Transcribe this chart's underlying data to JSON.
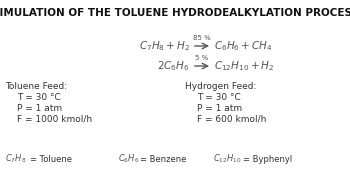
{
  "title": "SIMULATION OF THE TOLUENE HYDRODEALKYLATION PROCESS",
  "title_fontsize": 7.5,
  "title_fontweight": "bold",
  "bg_color": "#ffffff",
  "text_color": "#333333",
  "reaction_color": "#555555",
  "reaction1_pct": "85 %",
  "reaction2_pct": "5 %",
  "toluene_feed_label": "Toluene Feed:",
  "toluene_T": "T = 30 °C",
  "toluene_P": "P = 1 atm",
  "toluene_F": "F = 1000 kmol/h",
  "hydrogen_feed_label": "Hydrogen Feed:",
  "hydrogen_T": "T = 30 °C",
  "hydrogen_P": "P = 1 atm",
  "hydrogen_F": "F = 600 kmol/h",
  "legend1_formula": "$C_7H_8$",
  "legend1_name": "= Toluene",
  "legend2_formula": "$C_6H_6$",
  "legend2_name": "= Benzene",
  "legend3_formula": "$C_{12}H_{10}$",
  "legend3_name": "= Byphenyl",
  "feed_fontsize": 6.5,
  "legend_fontsize": 6.0,
  "reaction_fontsize": 7.5,
  "pct_fontsize": 5.0
}
